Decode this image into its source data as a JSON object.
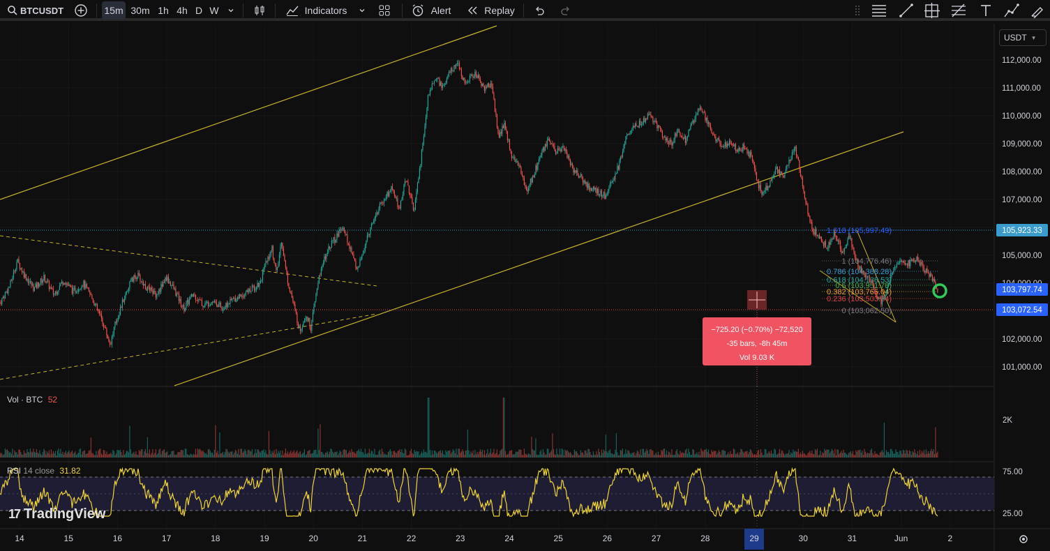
{
  "toolbar": {
    "symbol": "BTCUSDT",
    "timeframes": [
      "15m",
      "30m",
      "1h",
      "4h",
      "D",
      "W"
    ],
    "active_timeframe": "15m",
    "indicators_label": "Indicators",
    "alert_label": "Alert",
    "replay_label": "Replay",
    "icons": [
      "search-icon",
      "add-symbol-icon",
      "chevron-down-icon",
      "candles-icon",
      "indicators-icon",
      "templates-icon",
      "alert-icon",
      "replay-icon",
      "undo-icon",
      "redo-icon",
      "drag-handle-icon",
      "horizontal-lines-icon",
      "trend-line-icon",
      "crosshair-box-icon",
      "fib-icon",
      "text-icon",
      "path-icon",
      "brush-icon"
    ]
  },
  "currency": "USDT",
  "volume_label": {
    "name": "Vol · BTC",
    "value": "52"
  },
  "rsi_label": {
    "name": "RSI",
    "params": "14 close",
    "value": "31.82"
  },
  "logo_text": "TradingView",
  "measure_box": {
    "line1": "−725.20 (−0.70%) −72,520",
    "line2": "-35 bars, -8h 45m",
    "line3": "Vol 9.03 K"
  },
  "price_tags": {
    "blue_line": "105,923.33",
    "current": "103,797.74",
    "crosshair": "103,072.54"
  },
  "fib_labels": [
    {
      "text": "1.618 (105,997.49)",
      "color": "#2962ff"
    },
    {
      "text": "1 (104,776.46)",
      "color": "#787b86"
    },
    {
      "text": "0.786 (104,388.28)",
      "color": "#3a9ccc"
    },
    {
      "text": "0.618 (104,138.53)",
      "color": "#2aa59a"
    },
    {
      "text": "0.5 (103,951.78)",
      "color": "#4caf50"
    },
    {
      "text": "0.382 (103,765.04)",
      "color": "#f0a030"
    },
    {
      "text": "0.236 (103,503.34)",
      "color": "#d84848"
    },
    {
      "text": "0 (103,062.50)",
      "color": "#787b86"
    }
  ],
  "colors": {
    "up": "#26a69a",
    "down": "#ef5350",
    "channel": "#c8b526",
    "rsi": "#f0d537",
    "blue_line": "#2962ff",
    "measure": "#f05361"
  },
  "chart_data": {
    "type": "candlestick",
    "price_axis": {
      "ticks": [
        101000,
        102000,
        103000,
        104000,
        105000,
        106000,
        107000,
        108000,
        109000,
        110000,
        111000,
        112000
      ],
      "tick_labels": [
        "101,000.00",
        "102,000.00",
        "103,000.00",
        "104,000.00",
        "105,000.00",
        "106,000.00",
        "107,000.00",
        "108,000.00",
        "109,000.00",
        "110,000.00",
        "111,000.00",
        "112,000.00"
      ],
      "range": [
        100250,
        112800
      ]
    },
    "time_axis": {
      "labels": [
        "14",
        "15",
        "16",
        "17",
        "18",
        "19",
        "20",
        "21",
        "22",
        "23",
        "24",
        "25",
        "26",
        "27",
        "28",
        "29",
        "30",
        "31",
        "Jun",
        "2"
      ],
      "highlighted": "29"
    },
    "price_path": [
      {
        "t": 13.6,
        "p": 103300
      },
      {
        "t": 13.8,
        "p": 103900
      },
      {
        "t": 13.95,
        "p": 104800
      },
      {
        "t": 14.1,
        "p": 104300
      },
      {
        "t": 14.3,
        "p": 103800
      },
      {
        "t": 14.5,
        "p": 104200
      },
      {
        "t": 14.7,
        "p": 103600
      },
      {
        "t": 14.9,
        "p": 104100
      },
      {
        "t": 15.1,
        "p": 103700
      },
      {
        "t": 15.3,
        "p": 104000
      },
      {
        "t": 15.5,
        "p": 103400
      },
      {
        "t": 15.7,
        "p": 102600
      },
      {
        "t": 15.85,
        "p": 101800
      },
      {
        "t": 15.95,
        "p": 102500
      },
      {
        "t": 16.1,
        "p": 103300
      },
      {
        "t": 16.25,
        "p": 104000
      },
      {
        "t": 16.4,
        "p": 104300
      },
      {
        "t": 16.6,
        "p": 103800
      },
      {
        "t": 16.8,
        "p": 103600
      },
      {
        "t": 17.0,
        "p": 104200
      },
      {
        "t": 17.15,
        "p": 103800
      },
      {
        "t": 17.35,
        "p": 103100
      },
      {
        "t": 17.55,
        "p": 103600
      },
      {
        "t": 17.75,
        "p": 103200
      },
      {
        "t": 17.95,
        "p": 103400
      },
      {
        "t": 18.15,
        "p": 103100
      },
      {
        "t": 18.35,
        "p": 103400
      },
      {
        "t": 18.55,
        "p": 103600
      },
      {
        "t": 18.75,
        "p": 103800
      },
      {
        "t": 18.9,
        "p": 104000
      },
      {
        "t": 19.05,
        "p": 104800
      },
      {
        "t": 19.15,
        "p": 105300
      },
      {
        "t": 19.25,
        "p": 104300
      },
      {
        "t": 19.35,
        "p": 105600
      },
      {
        "t": 19.45,
        "p": 104300
      },
      {
        "t": 19.6,
        "p": 103200
      },
      {
        "t": 19.72,
        "p": 102300
      },
      {
        "t": 19.85,
        "p": 102900
      },
      {
        "t": 19.95,
        "p": 102400
      },
      {
        "t": 20.1,
        "p": 104100
      },
      {
        "t": 20.3,
        "p": 105300
      },
      {
        "t": 20.45,
        "p": 105600
      },
      {
        "t": 20.6,
        "p": 106100
      },
      {
        "t": 20.75,
        "p": 105200
      },
      {
        "t": 20.9,
        "p": 104500
      },
      {
        "t": 21.05,
        "p": 105300
      },
      {
        "t": 21.2,
        "p": 106200
      },
      {
        "t": 21.4,
        "p": 106900
      },
      {
        "t": 21.6,
        "p": 107400
      },
      {
        "t": 21.75,
        "p": 106700
      },
      {
        "t": 21.9,
        "p": 107800
      },
      {
        "t": 22.05,
        "p": 106500
      },
      {
        "t": 22.2,
        "p": 108500
      },
      {
        "t": 22.35,
        "p": 110800
      },
      {
        "t": 22.5,
        "p": 111400
      },
      {
        "t": 22.65,
        "p": 111000
      },
      {
        "t": 22.8,
        "p": 111600
      },
      {
        "t": 22.95,
        "p": 111800
      },
      {
        "t": 23.1,
        "p": 111200
      },
      {
        "t": 23.3,
        "p": 111500
      },
      {
        "t": 23.5,
        "p": 111000
      },
      {
        "t": 23.65,
        "p": 111100
      },
      {
        "t": 23.78,
        "p": 109200
      },
      {
        "t": 23.9,
        "p": 109700
      },
      {
        "t": 24.05,
        "p": 108600
      },
      {
        "t": 24.2,
        "p": 108200
      },
      {
        "t": 24.35,
        "p": 107300
      },
      {
        "t": 24.5,
        "p": 107900
      },
      {
        "t": 24.65,
        "p": 108600
      },
      {
        "t": 24.8,
        "p": 109100
      },
      {
        "t": 24.95,
        "p": 108700
      },
      {
        "t": 25.1,
        "p": 108900
      },
      {
        "t": 25.3,
        "p": 108100
      },
      {
        "t": 25.5,
        "p": 107700
      },
      {
        "t": 25.65,
        "p": 107400
      },
      {
        "t": 25.8,
        "p": 107300
      },
      {
        "t": 25.95,
        "p": 107100
      },
      {
        "t": 26.1,
        "p": 107600
      },
      {
        "t": 26.25,
        "p": 108300
      },
      {
        "t": 26.4,
        "p": 109300
      },
      {
        "t": 26.55,
        "p": 109600
      },
      {
        "t": 26.7,
        "p": 109800
      },
      {
        "t": 26.85,
        "p": 110000
      },
      {
        "t": 27.0,
        "p": 109700
      },
      {
        "t": 27.15,
        "p": 109300
      },
      {
        "t": 27.3,
        "p": 109000
      },
      {
        "t": 27.45,
        "p": 109500
      },
      {
        "t": 27.6,
        "p": 109100
      },
      {
        "t": 27.75,
        "p": 109800
      },
      {
        "t": 27.9,
        "p": 110300
      },
      {
        "t": 28.05,
        "p": 109800
      },
      {
        "t": 28.2,
        "p": 109200
      },
      {
        "t": 28.35,
        "p": 108900
      },
      {
        "t": 28.5,
        "p": 109000
      },
      {
        "t": 28.65,
        "p": 108800
      },
      {
        "t": 28.8,
        "p": 108900
      },
      {
        "t": 28.95,
        "p": 108500
      },
      {
        "t": 29.05,
        "p": 107700
      },
      {
        "t": 29.15,
        "p": 107200
      },
      {
        "t": 29.3,
        "p": 107500
      },
      {
        "t": 29.45,
        "p": 108100
      },
      {
        "t": 29.6,
        "p": 107800
      },
      {
        "t": 29.75,
        "p": 108500
      },
      {
        "t": 29.85,
        "p": 108800
      },
      {
        "t": 29.95,
        "p": 107900
      },
      {
        "t": 30.05,
        "p": 106900
      },
      {
        "t": 30.2,
        "p": 105900
      },
      {
        "t": 30.35,
        "p": 105600
      },
      {
        "t": 30.5,
        "p": 105300
      },
      {
        "t": 30.65,
        "p": 105800
      },
      {
        "t": 30.8,
        "p": 105100
      },
      {
        "t": 30.95,
        "p": 105700
      },
      {
        "t": 31.05,
        "p": 104900
      },
      {
        "t": 31.2,
        "p": 104400
      },
      {
        "t": 31.35,
        "p": 104200
      },
      {
        "t": 31.5,
        "p": 103600
      },
      {
        "t": 31.6,
        "p": 103300
      },
      {
        "t": 31.7,
        "p": 103800
      },
      {
        "t": 31.85,
        "p": 104500
      },
      {
        "t": 32.0,
        "p": 104800
      },
      {
        "t": 32.15,
        "p": 104700
      },
      {
        "t": 32.3,
        "p": 104900
      },
      {
        "t": 32.45,
        "p": 104500
      },
      {
        "t": 32.6,
        "p": 104300
      },
      {
        "t": 32.75,
        "p": 103800
      }
    ],
    "rsi_axis": {
      "ticks": [
        25,
        75
      ],
      "tick_labels": [
        "25.00",
        "75.00"
      ],
      "band": [
        30,
        70
      ]
    },
    "volume_axis": {
      "tick_labels": [
        "2K"
      ],
      "ticks": [
        2000
      ]
    }
  }
}
